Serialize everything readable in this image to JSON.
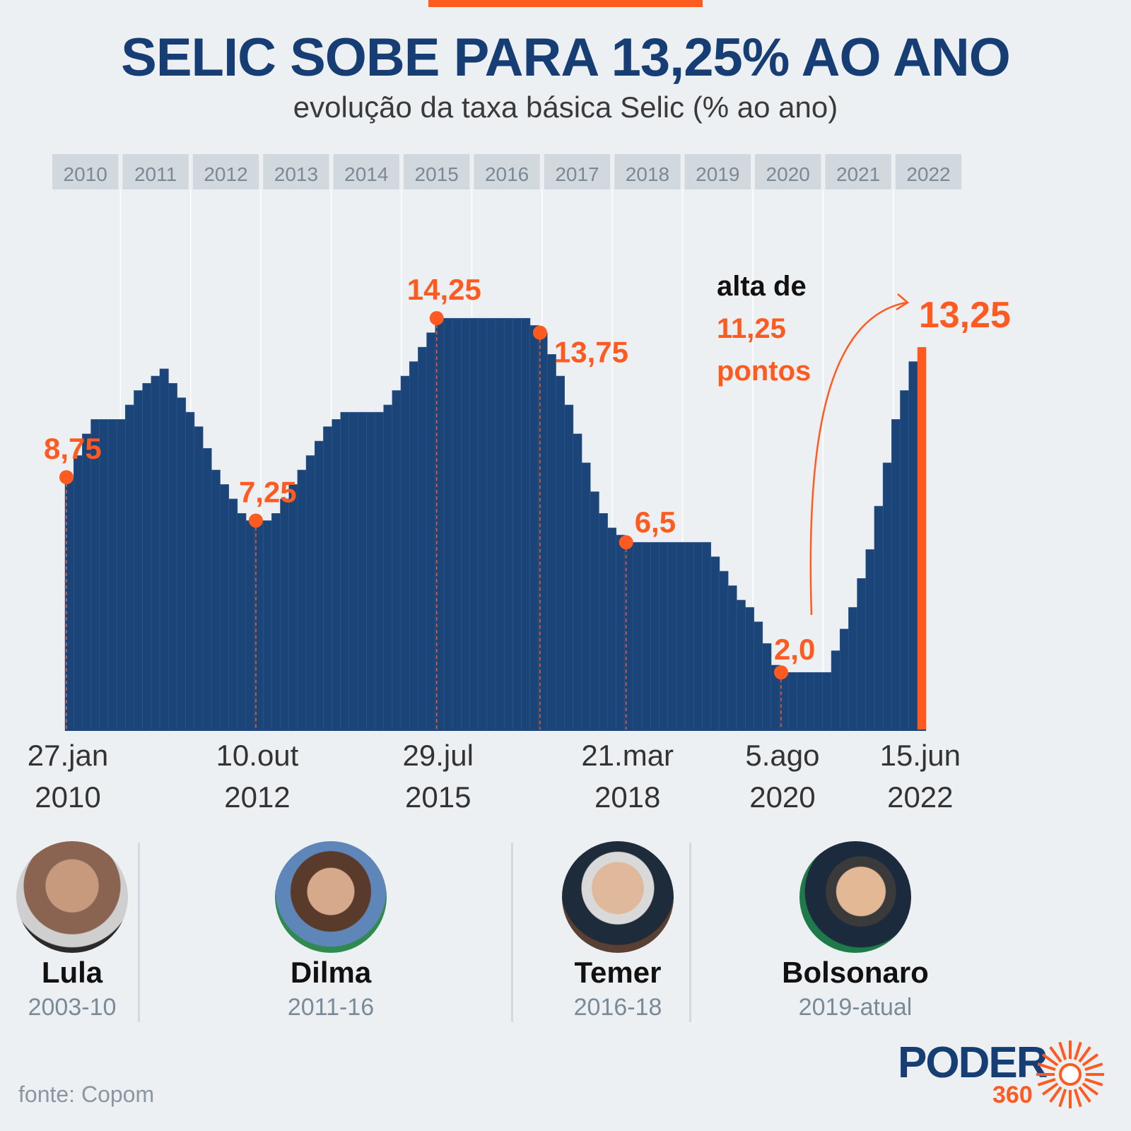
{
  "header": {
    "title": "SELIC SOBE PARA 13,25% AO ANO",
    "subtitle": "evolução da taxa básica Selic (% ao ano)"
  },
  "chart_data": {
    "type": "bar",
    "title": "SELIC SOBE PARA 13,25% AO ANO",
    "subtitle": "evolução da taxa básica Selic (% ao ano)",
    "ylim": [
      0,
      15
    ],
    "grid": false,
    "years": [
      "2010",
      "2011",
      "2012",
      "2013",
      "2014",
      "2015",
      "2016",
      "2017",
      "2018",
      "2019",
      "2020",
      "2021",
      "2022"
    ],
    "values": [
      8.75,
      9.5,
      10.25,
      10.75,
      10.75,
      10.75,
      10.75,
      11.25,
      11.75,
      12.0,
      12.25,
      12.5,
      12.0,
      11.5,
      11.0,
      10.5,
      9.75,
      9.0,
      8.5,
      8.0,
      7.5,
      7.25,
      7.25,
      7.25,
      7.5,
      8.0,
      8.5,
      9.0,
      9.5,
      10.0,
      10.5,
      10.75,
      11.0,
      11.0,
      11.0,
      11.0,
      11.0,
      11.25,
      11.75,
      12.25,
      12.75,
      13.25,
      13.75,
      14.25,
      14.25,
      14.25,
      14.25,
      14.25,
      14.25,
      14.25,
      14.25,
      14.25,
      14.25,
      14.25,
      14.0,
      13.75,
      13.0,
      12.25,
      11.25,
      10.25,
      9.25,
      8.25,
      7.5,
      7.0,
      6.75,
      6.5,
      6.5,
      6.5,
      6.5,
      6.5,
      6.5,
      6.5,
      6.5,
      6.5,
      6.5,
      6.0,
      5.5,
      5.0,
      4.5,
      4.25,
      3.75,
      3.0,
      2.25,
      2.0,
      2.0,
      2.0,
      2.0,
      2.0,
      2.0,
      2.75,
      3.5,
      4.25,
      5.25,
      6.25,
      7.75,
      9.25,
      10.75,
      11.75,
      12.75,
      13.25
    ],
    "annotations": [
      {
        "label": "8,75",
        "value": 8.75,
        "index": 0
      },
      {
        "label": "7,25",
        "value": 7.25,
        "index": 22
      },
      {
        "label": "14,25",
        "value": 14.25,
        "index": 43
      },
      {
        "label": "13,75",
        "value": 13.75,
        "index": 55
      },
      {
        "label": "6,5",
        "value": 6.5,
        "index": 65
      },
      {
        "label": "2,0",
        "value": 2.0,
        "index": 83
      },
      {
        "label": "13,25",
        "value": 13.25,
        "index": 99
      }
    ],
    "x_ticks": [
      {
        "day": "27.jan",
        "year": "2010",
        "index": 0
      },
      {
        "day": "10.out",
        "year": "2012",
        "index": 22
      },
      {
        "day": "29.jul",
        "year": "2015",
        "index": 43
      },
      {
        "day": "21.mar",
        "year": "2018",
        "index": 65
      },
      {
        "day": "5.ago",
        "year": "2020",
        "index": 83
      },
      {
        "day": "15.jun",
        "year": "2022",
        "index": 99
      }
    ],
    "callout": {
      "line1": "alta de",
      "line2": "11,25",
      "line3": "pontos"
    }
  },
  "presidents": [
    {
      "name": "Lula",
      "years": "2003-10"
    },
    {
      "name": "Dilma",
      "years": "2011-16"
    },
    {
      "name": "Temer",
      "years": "2016-18"
    },
    {
      "name": "Bolsonaro",
      "years": "2019-atual"
    }
  ],
  "footer": {
    "source": "fonte: Copom",
    "logo": "PODER",
    "logo_sub": "360"
  },
  "colors": {
    "bar": "#1b4479",
    "accent": "#ff5a1f",
    "title": "#163e75",
    "year_box": "#d2d9de"
  }
}
